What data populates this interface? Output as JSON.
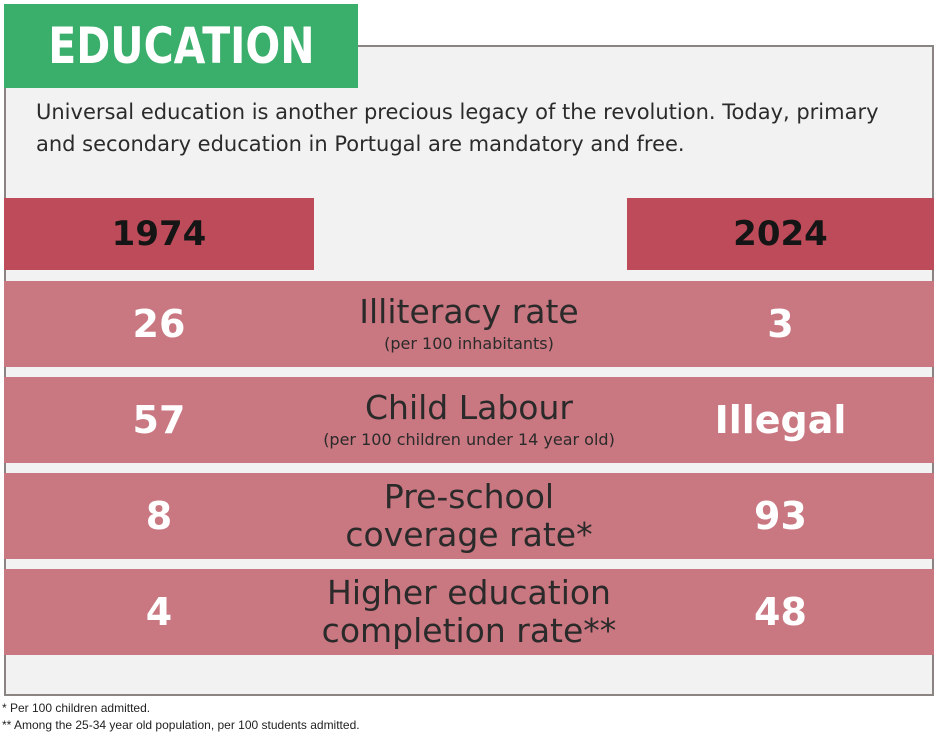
{
  "header": {
    "title": "EDUCATION"
  },
  "intro": {
    "text": "Universal education is another precious legacy of the revolution. Today, primary and secondary education in Portugal are mandatory and free."
  },
  "years": {
    "left": "1974",
    "right": "2024"
  },
  "rows": [
    {
      "metric": "Illiteracy rate",
      "sub": "(per 100 inhabitants)",
      "v1974": "26",
      "v2024": "3"
    },
    {
      "metric": "Child Labour",
      "sub": "(per 100 children under 14 year old)",
      "v1974": "57",
      "v2024": "Illegal"
    },
    {
      "metric": "Pre-school coverage rate*",
      "sub": "",
      "v1974": "8",
      "v2024": "93"
    },
    {
      "metric": "Higher education completion rate**",
      "sub": "",
      "v1974": "4",
      "v2024": "48"
    }
  ],
  "footnotes": [
    "* Per 100 children admitted.",
    "** Among the 25-34 year old population, per 100 students admitted."
  ],
  "colors": {
    "title_bg": "#3aae6b",
    "year_bg": "#be4b5a",
    "row_bg": "#c97780",
    "panel_bg": "#f2f2f2"
  }
}
